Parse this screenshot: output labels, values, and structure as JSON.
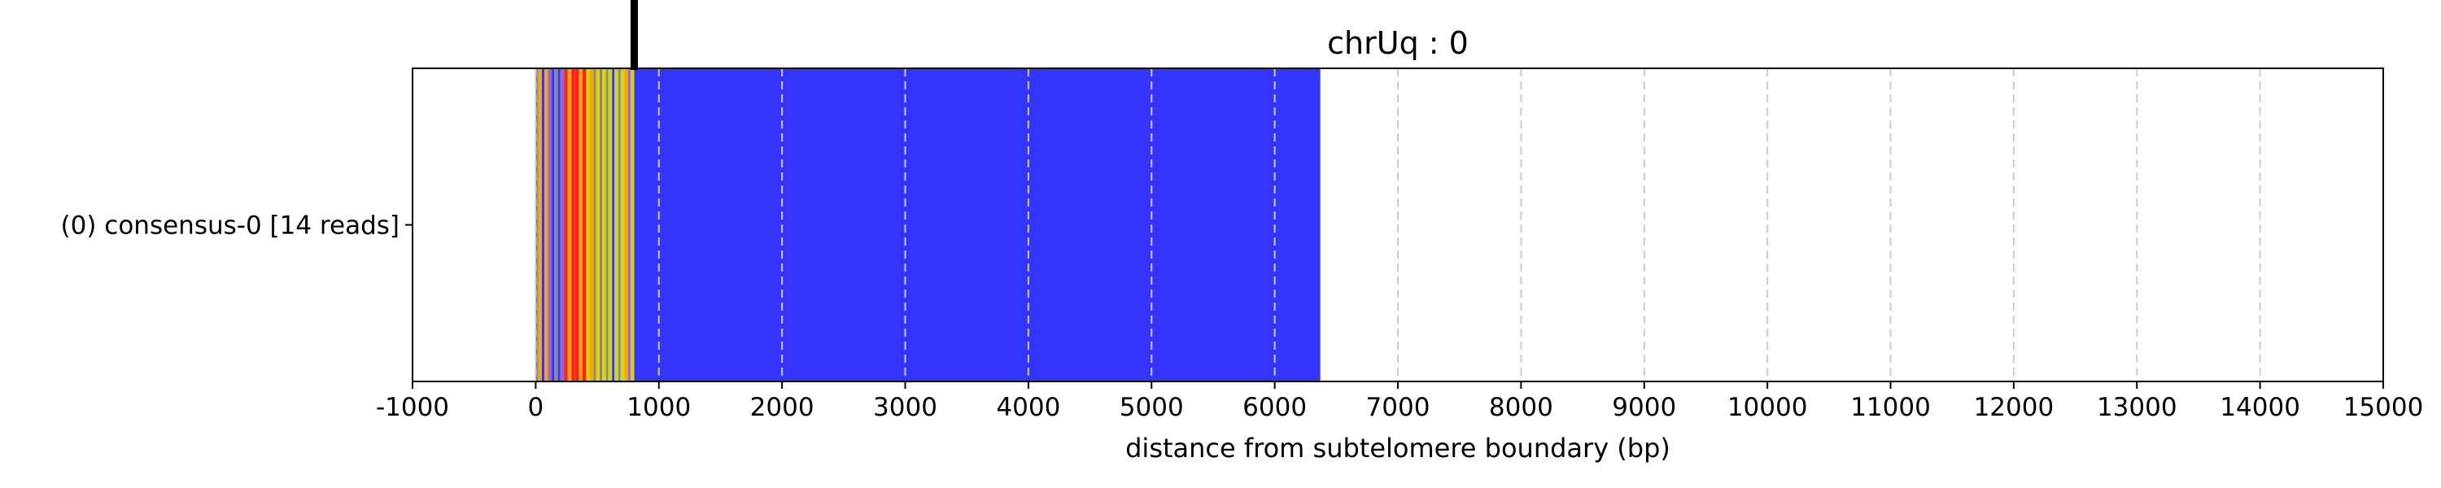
{
  "chart_data": {
    "type": "bar",
    "title": "chrUq : 0",
    "xlabel": "distance from subtelomere boundary (bp)",
    "ylabel": "",
    "xlim": [
      -1000,
      15000
    ],
    "xticks": [
      -1000,
      0,
      1000,
      2000,
      3000,
      4000,
      5000,
      6000,
      7000,
      8000,
      9000,
      10000,
      11000,
      12000,
      13000,
      14000,
      15000
    ],
    "grid": "x-dashed",
    "categories": [
      "(0) consensus-0 [14 reads]"
    ],
    "boundary_marker_x": 800,
    "colors": {
      "repeat_main": "#3434ff",
      "grid": "#cccccc",
      "marker": "#000000",
      "variant_red": "#ff2020",
      "variant_orange": "#ffa500",
      "variant_yellow": "#d6d600",
      "variant_gray": "#8a8a8a",
      "variant_purple": "#9966cc"
    },
    "series": [
      {
        "category_index": 0,
        "segments": [
          {
            "start": 0,
            "end": 20,
            "color": "#8a8a8a"
          },
          {
            "start": 20,
            "end": 50,
            "color": "#ffa500"
          },
          {
            "start": 50,
            "end": 70,
            "color": "#3434ff"
          },
          {
            "start": 70,
            "end": 100,
            "color": "#ffa500"
          },
          {
            "start": 100,
            "end": 130,
            "color": "#9966cc"
          },
          {
            "start": 130,
            "end": 150,
            "color": "#3434ff"
          },
          {
            "start": 150,
            "end": 180,
            "color": "#8a8a8a"
          },
          {
            "start": 180,
            "end": 200,
            "color": "#3434ff"
          },
          {
            "start": 200,
            "end": 230,
            "color": "#9966cc"
          },
          {
            "start": 230,
            "end": 260,
            "color": "#ff2020"
          },
          {
            "start": 260,
            "end": 290,
            "color": "#ffa500"
          },
          {
            "start": 290,
            "end": 320,
            "color": "#ff2020"
          },
          {
            "start": 320,
            "end": 350,
            "color": "#ff2020"
          },
          {
            "start": 350,
            "end": 380,
            "color": "#ffa500"
          },
          {
            "start": 380,
            "end": 410,
            "color": "#ff2020"
          },
          {
            "start": 410,
            "end": 440,
            "color": "#d6d600"
          },
          {
            "start": 440,
            "end": 470,
            "color": "#ffa500"
          },
          {
            "start": 470,
            "end": 490,
            "color": "#8a8a8a"
          },
          {
            "start": 490,
            "end": 520,
            "color": "#d6d600"
          },
          {
            "start": 520,
            "end": 540,
            "color": "#9966cc"
          },
          {
            "start": 540,
            "end": 570,
            "color": "#d6d600"
          },
          {
            "start": 570,
            "end": 590,
            "color": "#8a8a8a"
          },
          {
            "start": 590,
            "end": 620,
            "color": "#d6d600"
          },
          {
            "start": 620,
            "end": 640,
            "color": "#3434ff"
          },
          {
            "start": 640,
            "end": 670,
            "color": "#d6d600"
          },
          {
            "start": 670,
            "end": 690,
            "color": "#8a8a8a"
          },
          {
            "start": 690,
            "end": 720,
            "color": "#d6d600"
          },
          {
            "start": 720,
            "end": 750,
            "color": "#ffa500"
          },
          {
            "start": 750,
            "end": 770,
            "color": "#9966cc"
          },
          {
            "start": 770,
            "end": 800,
            "color": "#d6d600"
          },
          {
            "start": 800,
            "end": 6370,
            "color": "#3434ff"
          }
        ]
      }
    ]
  }
}
